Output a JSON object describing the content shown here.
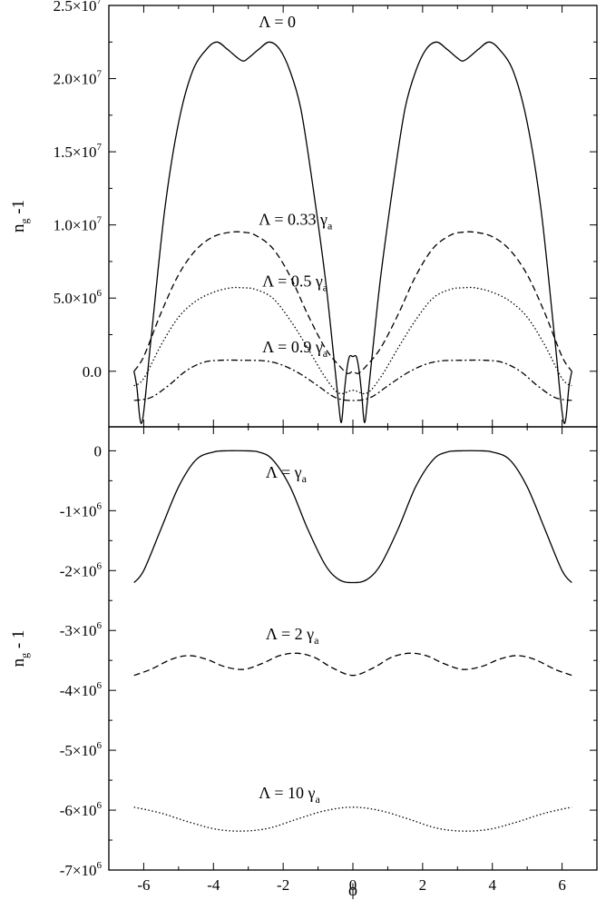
{
  "chart_data": [
    {
      "type": "line",
      "panel": "top",
      "xlim": [
        -7,
        7
      ],
      "ylim": [
        -3800000,
        25000000
      ],
      "ylabel": {
        "main": "n",
        "sub": "g",
        "rest": " -1"
      },
      "xticks": [
        -6,
        -4,
        -2,
        0,
        2,
        4,
        6
      ],
      "yticks": [
        {
          "value": 0,
          "mantissa": "0.0",
          "exp": ""
        },
        {
          "value": 5000000,
          "mantissa": "5.0×10",
          "exp": "6"
        },
        {
          "value": 10000000,
          "mantissa": "1.0×10",
          "exp": "7"
        },
        {
          "value": 15000000,
          "mantissa": "1.5×10",
          "exp": "7"
        },
        {
          "value": 20000000,
          "mantissa": "2.0×10",
          "exp": "7"
        },
        {
          "value": 25000000,
          "mantissa": "2.5×10",
          "exp": "7"
        }
      ],
      "series": [
        {
          "name": "Λ = 0",
          "style": "solid",
          "annotation": {
            "main": "Λ = 0",
            "sub": ""
          },
          "label_at": [
            -2.7,
            23500000
          ],
          "x": [
            -6.28,
            -6.2,
            -6.05,
            -5.8,
            -5.4,
            -5.0,
            -4.6,
            -4.2,
            -3.9,
            -3.6,
            -3.3,
            -3.14,
            -3.0,
            -2.7,
            -2.4,
            -2.1,
            -1.8,
            -1.5,
            -1.2,
            -0.8,
            -0.55,
            -0.42,
            -0.33,
            -0.25,
            -0.18,
            -0.1,
            0,
            0.1,
            0.18,
            0.25,
            0.33,
            0.42,
            0.55,
            0.8,
            1.2,
            1.5,
            1.8,
            2.1,
            2.4,
            2.7,
            3.0,
            3.14,
            3.3,
            3.6,
            3.9,
            4.2,
            4.6,
            5.0,
            5.4,
            5.8,
            6.05,
            6.2,
            6.28
          ],
          "y": [
            0,
            -1000000,
            -3500000,
            2000000,
            11000000,
            17000000,
            20500000,
            22000000,
            22500000,
            22000000,
            21400000,
            21200000,
            21400000,
            22000000,
            22500000,
            22000000,
            20500000,
            18000000,
            13500000,
            6500000,
            1000000,
            -2000000,
            -3500000,
            -1500000,
            0,
            1000000,
            1000000,
            1000000,
            0,
            -1500000,
            -3500000,
            -2000000,
            1000000,
            6500000,
            13500000,
            18000000,
            20500000,
            22000000,
            22500000,
            22000000,
            21400000,
            21200000,
            21400000,
            22000000,
            22500000,
            22000000,
            20500000,
            17000000,
            11000000,
            2000000,
            -3500000,
            -1000000,
            0
          ]
        },
        {
          "name": "Λ = 0.33 γa",
          "style": "dashed",
          "annotation": {
            "main": "Λ = 0.33 γ",
            "sub": "a"
          },
          "label_at": [
            -2.7,
            10000000
          ],
          "x": [
            -6.28,
            -6.0,
            -5.5,
            -5.0,
            -4.5,
            -4.0,
            -3.5,
            -3.14,
            -2.8,
            -2.3,
            -1.8,
            -1.3,
            -0.8,
            -0.4,
            -0.15,
            0,
            0.15,
            0.4,
            0.8,
            1.3,
            1.8,
            2.3,
            2.8,
            3.14,
            3.5,
            4.0,
            4.5,
            5.0,
            5.5,
            6.0,
            6.28
          ],
          "y": [
            0,
            1000000,
            4000000,
            6600000,
            8300000,
            9200000,
            9500000,
            9500000,
            9300000,
            8400000,
            6500000,
            3900000,
            1600000,
            400000,
            -150000,
            0,
            -150000,
            400000,
            1600000,
            3900000,
            6500000,
            8400000,
            9300000,
            9500000,
            9500000,
            9200000,
            8300000,
            6600000,
            4000000,
            1000000,
            0
          ]
        },
        {
          "name": "Λ = 0.5 γa",
          "style": "dotted",
          "annotation": {
            "main": "Λ = 0.5 γ",
            "sub": "a"
          },
          "label_at": [
            -2.6,
            5800000
          ],
          "x": [
            -6.28,
            -6.0,
            -5.5,
            -5.0,
            -4.5,
            -4.0,
            -3.5,
            -3.14,
            -2.8,
            -2.3,
            -1.8,
            -1.3,
            -0.8,
            -0.4,
            0,
            0.4,
            0.8,
            1.3,
            1.8,
            2.3,
            2.8,
            3.14,
            3.5,
            4.0,
            4.5,
            5.0,
            5.5,
            6.0,
            6.28
          ],
          "y": [
            -1000000,
            -500000,
            1800000,
            3700000,
            4800000,
            5400000,
            5700000,
            5700000,
            5600000,
            5000000,
            3500000,
            1600000,
            -400000,
            -1500000,
            -1300000,
            -1500000,
            -400000,
            1600000,
            3500000,
            5000000,
            5600000,
            5700000,
            5700000,
            5400000,
            4800000,
            3700000,
            1800000,
            -500000,
            -1000000
          ]
        },
        {
          "name": "Λ = 0.9 γa",
          "style": "dashdot",
          "annotation": {
            "main": "Λ = 0.9 γ",
            "sub": "a"
          },
          "label_at": [
            -2.6,
            1300000
          ],
          "x": [
            -6.28,
            -5.8,
            -5.3,
            -4.8,
            -4.3,
            -3.8,
            -3.14,
            -2.5,
            -2.0,
            -1.5,
            -1.0,
            -0.5,
            0,
            0.5,
            1.0,
            1.5,
            2.0,
            2.5,
            3.14,
            3.8,
            4.3,
            4.8,
            5.3,
            5.8,
            6.28
          ],
          "y": [
            -2000000,
            -1800000,
            -1000000,
            0,
            600000,
            750000,
            750000,
            700000,
            400000,
            -200000,
            -1000000,
            -1800000,
            -2000000,
            -1800000,
            -1000000,
            -200000,
            400000,
            700000,
            750000,
            750000,
            600000,
            0,
            -1000000,
            -1800000,
            -2000000
          ]
        }
      ]
    },
    {
      "type": "line",
      "panel": "bottom",
      "xlim": [
        -7,
        7
      ],
      "ylim": [
        -7000000,
        400000
      ],
      "xlabel": "ϕ",
      "ylabel": {
        "main": "n",
        "sub": "g",
        "rest": " - 1"
      },
      "xticks": [
        -6,
        -4,
        -2,
        0,
        2,
        4,
        6
      ],
      "yticks": [
        {
          "value": 0,
          "mantissa": "0",
          "exp": ""
        },
        {
          "value": -1000000,
          "mantissa": "-1×10",
          "exp": "6"
        },
        {
          "value": -2000000,
          "mantissa": "-2×10",
          "exp": "6"
        },
        {
          "value": -3000000,
          "mantissa": "-3×10",
          "exp": "6"
        },
        {
          "value": -4000000,
          "mantissa": "-4×10",
          "exp": "6"
        },
        {
          "value": -5000000,
          "mantissa": "-5×10",
          "exp": "6"
        },
        {
          "value": -6000000,
          "mantissa": "-6×10",
          "exp": "6"
        },
        {
          "value": -7000000,
          "mantissa": "-7×10",
          "exp": "6"
        }
      ],
      "series": [
        {
          "name": "Λ = γa",
          "style": "solid",
          "annotation": {
            "main": "Λ = γ",
            "sub": "a"
          },
          "label_at": [
            -2.5,
            -450000
          ],
          "x": [
            -6.28,
            -6.0,
            -5.5,
            -5.0,
            -4.5,
            -4.0,
            -3.6,
            -3.14,
            -2.7,
            -2.3,
            -1.8,
            -1.3,
            -0.8,
            -0.4,
            0,
            0.4,
            0.8,
            1.3,
            1.8,
            2.3,
            2.7,
            3.14,
            3.6,
            4.0,
            4.5,
            5.0,
            5.5,
            6.0,
            6.28
          ],
          "y": [
            -2200000,
            -2000000,
            -1300000,
            -600000,
            -150000,
            -20000,
            0,
            0,
            -20000,
            -150000,
            -600000,
            -1300000,
            -1900000,
            -2150000,
            -2200000,
            -2150000,
            -1900000,
            -1300000,
            -600000,
            -150000,
            -20000,
            0,
            0,
            -20000,
            -150000,
            -600000,
            -1300000,
            -2000000,
            -2200000
          ]
        },
        {
          "name": "Λ = 2 γa",
          "style": "dashed",
          "annotation": {
            "main": "Λ = 2 γ",
            "sub": "a"
          },
          "label_at": [
            -2.5,
            -3150000
          ],
          "x": [
            -6.28,
            -5.8,
            -5.2,
            -4.7,
            -4.2,
            -3.7,
            -3.14,
            -2.6,
            -2.1,
            -1.6,
            -1.1,
            -0.6,
            0,
            0.6,
            1.1,
            1.6,
            2.1,
            2.6,
            3.14,
            3.7,
            4.2,
            4.7,
            5.2,
            5.8,
            6.28
          ],
          "y": [
            -3750000,
            -3650000,
            -3480000,
            -3420000,
            -3480000,
            -3600000,
            -3650000,
            -3550000,
            -3420000,
            -3380000,
            -3450000,
            -3620000,
            -3750000,
            -3620000,
            -3450000,
            -3380000,
            -3420000,
            -3550000,
            -3650000,
            -3600000,
            -3480000,
            -3420000,
            -3480000,
            -3650000,
            -3750000
          ]
        },
        {
          "name": "Λ = 10 γa",
          "style": "dotted",
          "annotation": {
            "main": "Λ = 10 γ",
            "sub": "a"
          },
          "label_at": [
            -2.7,
            -5800000
          ],
          "x": [
            -6.28,
            -5.5,
            -4.7,
            -3.9,
            -3.14,
            -2.4,
            -1.6,
            -0.8,
            0,
            0.8,
            1.6,
            2.4,
            3.14,
            3.9,
            4.7,
            5.5,
            6.28
          ],
          "y": [
            -5950000,
            -6050000,
            -6200000,
            -6320000,
            -6350000,
            -6300000,
            -6150000,
            -6010000,
            -5950000,
            -6010000,
            -6150000,
            -6300000,
            -6350000,
            -6320000,
            -6200000,
            -6050000,
            -5950000
          ]
        }
      ]
    }
  ]
}
